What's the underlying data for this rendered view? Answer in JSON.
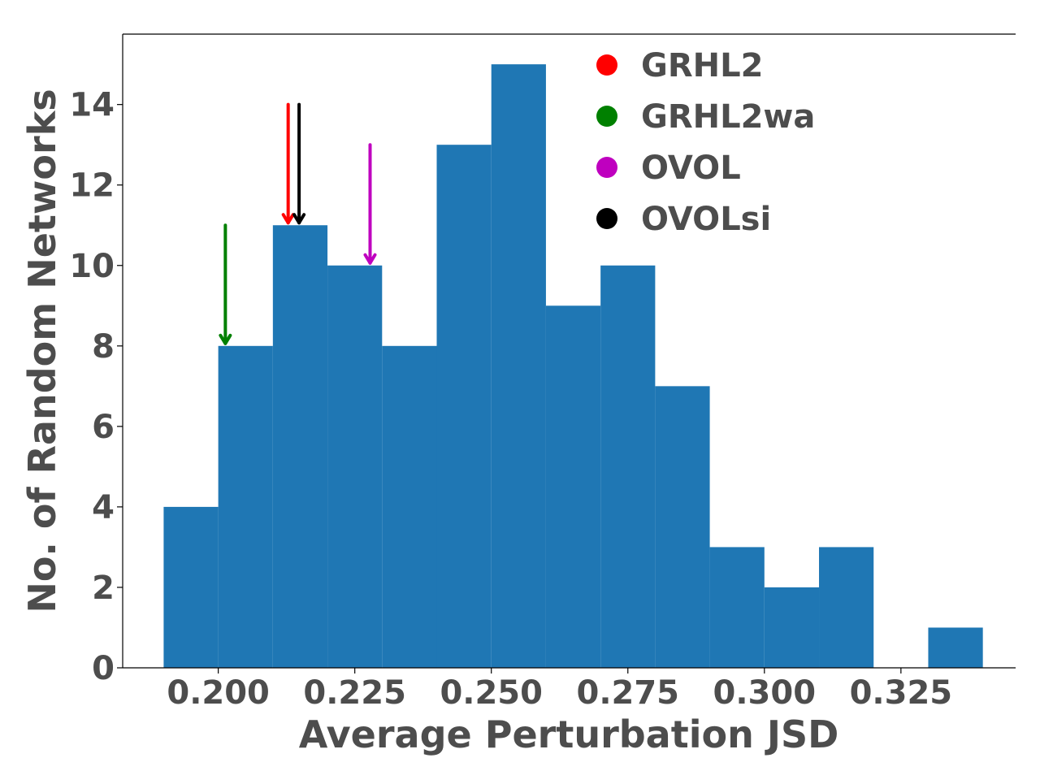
{
  "chart_data": {
    "type": "bar",
    "xlabel": "Average Perturbation JSD",
    "ylabel": "No. of Random Networks",
    "xlim": [
      0.1825,
      0.346
    ],
    "ylim": [
      0,
      15.75
    ],
    "xticks": [
      0.2,
      0.225,
      0.25,
      0.275,
      0.3,
      0.325
    ],
    "xtick_labels": [
      "0.200",
      "0.225",
      "0.250",
      "0.275",
      "0.300",
      "0.325"
    ],
    "yticks": [
      0,
      2,
      4,
      6,
      8,
      10,
      12,
      14
    ],
    "ytick_labels": [
      "0",
      "2",
      "4",
      "6",
      "8",
      "10",
      "12",
      "14"
    ],
    "bar_color": "#1f77b4",
    "bins": [
      {
        "x0": 0.19,
        "x1": 0.2,
        "count": 4
      },
      {
        "x0": 0.2,
        "x1": 0.21,
        "count": 8
      },
      {
        "x0": 0.21,
        "x1": 0.22,
        "count": 11
      },
      {
        "x0": 0.22,
        "x1": 0.23,
        "count": 10
      },
      {
        "x0": 0.23,
        "x1": 0.24,
        "count": 8
      },
      {
        "x0": 0.24,
        "x1": 0.25,
        "count": 13
      },
      {
        "x0": 0.25,
        "x1": 0.26,
        "count": 15
      },
      {
        "x0": 0.26,
        "x1": 0.27,
        "count": 9
      },
      {
        "x0": 0.27,
        "x1": 0.28,
        "count": 10
      },
      {
        "x0": 0.28,
        "x1": 0.29,
        "count": 7
      },
      {
        "x0": 0.29,
        "x1": 0.3,
        "count": 3
      },
      {
        "x0": 0.3,
        "x1": 0.31,
        "count": 2
      },
      {
        "x0": 0.31,
        "x1": 0.32,
        "count": 3
      },
      {
        "x0": 0.32,
        "x1": 0.33,
        "count": 0
      },
      {
        "x0": 0.33,
        "x1": 0.34,
        "count": 1
      }
    ],
    "markers": [
      {
        "name": "GRHL2",
        "color": "#ff0000",
        "x": 0.2128,
        "y_top": 14.0,
        "y_tip": 11.0
      },
      {
        "name": "GRHL2wa",
        "color": "#008000",
        "x": 0.2013,
        "y_top": 11.0,
        "y_tip": 8.0
      },
      {
        "name": "OVOL",
        "color": "#bf00bf",
        "x": 0.2278,
        "y_top": 13.0,
        "y_tip": 10.0
      },
      {
        "name": "OVOLsi",
        "color": "#000000",
        "x": 0.2148,
        "y_top": 14.0,
        "y_tip": 11.0
      }
    ],
    "legend": {
      "position": "top-right",
      "entries": [
        "GRHL2",
        "GRHL2wa",
        "OVOL",
        "OVOLsi"
      ]
    }
  }
}
